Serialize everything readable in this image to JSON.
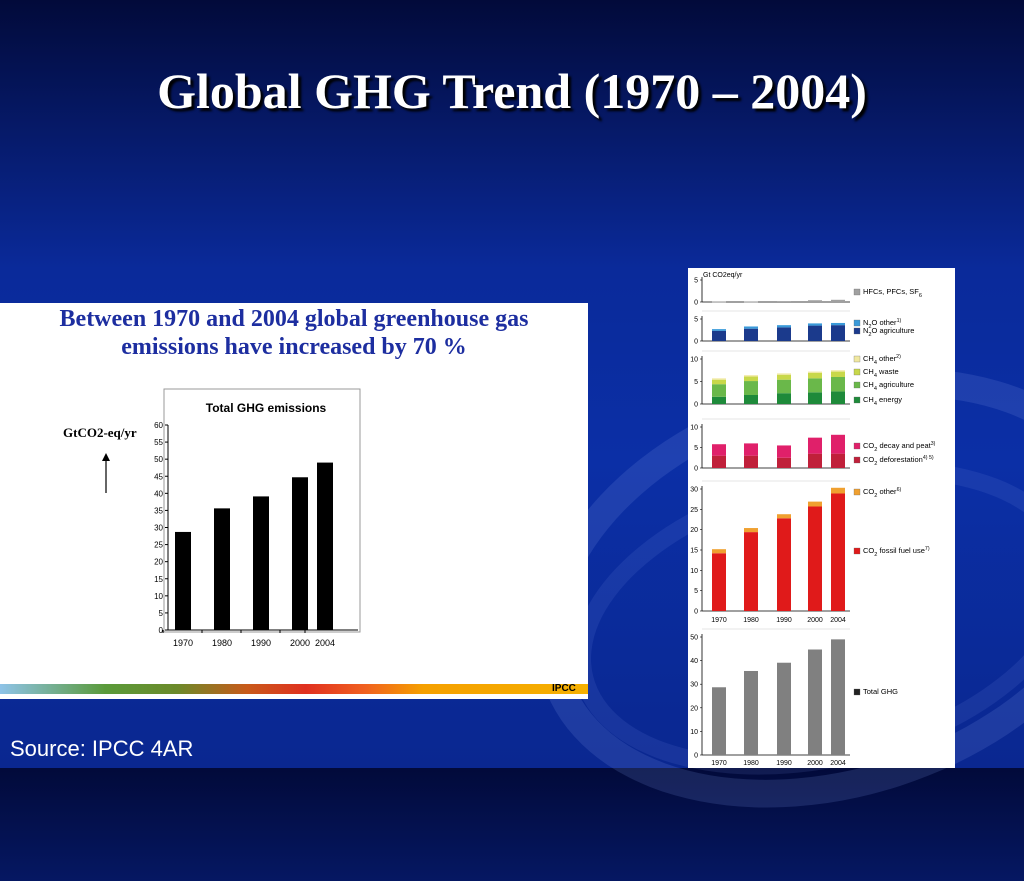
{
  "slide": {
    "title": "Global GHG Trend (1970 – 2004)",
    "source": "Source: IPCC 4AR"
  },
  "left_figure": {
    "headline_line1": "Between 1970 and 2004 global greenhouse gas",
    "headline_line2": "emissions have increased by 70 %",
    "ylabel": "GtCO2-eq/yr",
    "tag": "IPCC"
  },
  "chart_data": [
    {
      "type": "bar",
      "title": "Total GHG emissions",
      "categories": [
        "1970",
        "1980",
        "1990",
        "2000",
        "2004"
      ],
      "values": [
        28.7,
        35.6,
        39.1,
        44.7,
        49.0
      ],
      "ylim": [
        0,
        60
      ],
      "yticks": [
        0,
        5,
        10,
        15,
        20,
        25,
        30,
        35,
        40,
        45,
        50,
        55,
        60
      ],
      "color": "#000000"
    },
    {
      "type": "bar",
      "stacked": true,
      "unit_label": "Gt CO2eq/yr",
      "categories": [
        "1970",
        "1980",
        "1990",
        "2000",
        "2004"
      ],
      "panels": [
        {
          "ylim": [
            0,
            5
          ],
          "yticks": [
            0,
            5
          ],
          "series": [
            {
              "name": "HFCs, PFCs, SF6",
              "color": "#a0a0a0",
              "values": [
                0.1,
                0.1,
                0.2,
                0.4,
                0.5
              ]
            }
          ]
        },
        {
          "ylim": [
            0,
            5
          ],
          "yticks": [
            0,
            5
          ],
          "series": [
            {
              "name": "N2O agriculture",
              "color": "#1b3a8c",
              "values": [
                2.3,
                2.8,
                3.1,
                3.5,
                3.6
              ]
            },
            {
              "name": "N2O other",
              "color": "#3a9ad9",
              "values": [
                0.4,
                0.5,
                0.5,
                0.5,
                0.5
              ]
            }
          ]
        },
        {
          "ylim": [
            0,
            10
          ],
          "yticks": [
            0,
            5,
            10
          ],
          "series": [
            {
              "name": "CH4 energy",
              "color": "#1e8a3a",
              "values": [
                1.6,
                2.0,
                2.4,
                2.6,
                2.8
              ]
            },
            {
              "name": "CH4 agriculture",
              "color": "#6ab84a",
              "values": [
                2.8,
                3.1,
                3.0,
                3.1,
                3.2
              ]
            },
            {
              "name": "CH4 waste",
              "color": "#c8d84a",
              "values": [
                1.0,
                1.0,
                1.1,
                1.2,
                1.2
              ]
            },
            {
              "name": "CH4 other",
              "color": "#f0e8a0",
              "values": [
                0.3,
                0.3,
                0.3,
                0.3,
                0.3
              ]
            }
          ]
        },
        {
          "ylim": [
            0,
            10
          ],
          "yticks": [
            0,
            5,
            10
          ],
          "series": [
            {
              "name": "CO2 deforestation",
              "color": "#c0203a",
              "values": [
                3.0,
                3.0,
                2.5,
                3.5,
                3.5
              ]
            },
            {
              "name": "CO2 decay and peat",
              "color": "#e0206a",
              "values": [
                2.8,
                3.0,
                3.0,
                3.9,
                4.6
              ]
            }
          ]
        },
        {
          "ylim": [
            0,
            30
          ],
          "yticks": [
            0,
            5,
            10,
            15,
            20,
            25,
            30
          ],
          "series": [
            {
              "name": "CO2 fossil fuel use",
              "color": "#e01a1a",
              "values": [
                14.2,
                19.4,
                22.8,
                25.7,
                28.9
              ]
            },
            {
              "name": "CO2 other",
              "color": "#f0a030",
              "values": [
                1.0,
                1.0,
                1.0,
                1.2,
                1.4
              ]
            }
          ]
        },
        {
          "ylim": [
            0,
            50
          ],
          "yticks": [
            0,
            10,
            20,
            30,
            40,
            50
          ],
          "series": [
            {
              "name": "Total GHG",
              "color": "#808080",
              "values": [
                28.7,
                35.6,
                39.1,
                44.7,
                49.0
              ]
            }
          ]
        }
      ],
      "legend": [
        {
          "label": "HFCs, PFCs, SF6",
          "color": "#a0a0a0"
        },
        {
          "label": "N2O other1)",
          "color": "#3a9ad9"
        },
        {
          "label": "N2O agriculture",
          "color": "#1b3a8c"
        },
        {
          "label": "CH4 other2)",
          "color": "#f0e8a0"
        },
        {
          "label": "CH4 waste",
          "color": "#c8d84a"
        },
        {
          "label": "CH4 agriculture",
          "color": "#6ab84a"
        },
        {
          "label": "CH4 energy",
          "color": "#1e8a3a"
        },
        {
          "label": "CO2 decay and peat3)",
          "color": "#e0206a"
        },
        {
          "label": "CO2 deforestation4) 5)",
          "color": "#c0203a"
        },
        {
          "label": "CO2 other6)",
          "color": "#f0a030"
        },
        {
          "label": "CO2 fossil fuel use7)",
          "color": "#e01a1a"
        },
        {
          "label": "Total GHG",
          "color": "#222222"
        }
      ]
    }
  ]
}
